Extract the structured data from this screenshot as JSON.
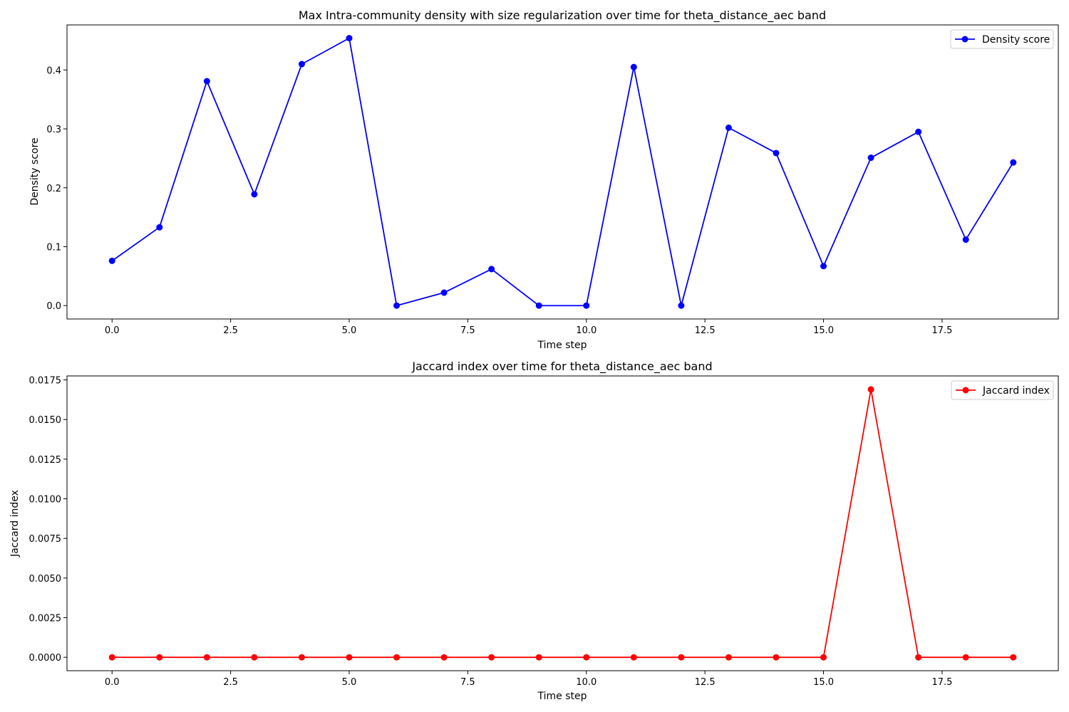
{
  "chart_data": [
    {
      "type": "line",
      "title": "Max Intra-community density with size regularization over time for theta_distance_aec band",
      "xlabel": "Time step",
      "ylabel": "Density score",
      "xlim": [
        -0.95,
        19.95
      ],
      "ylim": [
        -0.0227,
        0.4765
      ],
      "xticks": [
        0.0,
        2.5,
        5.0,
        7.5,
        10.0,
        12.5,
        15.0,
        17.5
      ],
      "xtick_labels": [
        "0.0",
        "2.5",
        "5.0",
        "7.5",
        "10.0",
        "12.5",
        "15.0",
        "17.5"
      ],
      "yticks": [
        0.0,
        0.1,
        0.2,
        0.3,
        0.4
      ],
      "ytick_labels": [
        "0.0",
        "0.1",
        "0.2",
        "0.3",
        "0.4"
      ],
      "grid": false,
      "legend_position": "top-right",
      "series": [
        {
          "name": "Density score",
          "color": "#0000ff",
          "marker": "circle",
          "x": [
            0,
            1,
            2,
            3,
            4,
            5,
            6,
            7,
            8,
            9,
            10,
            11,
            12,
            13,
            14,
            15,
            16,
            17,
            18,
            19
          ],
          "values": [
            0.076,
            0.133,
            0.381,
            0.189,
            0.41,
            0.454,
            0.0,
            0.022,
            0.062,
            0.0,
            0.0,
            0.405,
            0.0,
            0.302,
            0.259,
            0.067,
            0.251,
            0.295,
            0.112,
            0.243
          ]
        }
      ]
    },
    {
      "type": "line",
      "title": "Jaccard index over time for theta_distance_aec band",
      "xlabel": "Time step",
      "ylabel": "Jaccard index",
      "xlim": [
        -0.95,
        19.95
      ],
      "ylim": [
        -0.000845,
        0.01775
      ],
      "xticks": [
        0.0,
        2.5,
        5.0,
        7.5,
        10.0,
        12.5,
        15.0,
        17.5
      ],
      "xtick_labels": [
        "0.0",
        "2.5",
        "5.0",
        "7.5",
        "10.0",
        "12.5",
        "15.0",
        "17.5"
      ],
      "yticks": [
        0.0,
        0.0025,
        0.005,
        0.0075,
        0.01,
        0.0125,
        0.015,
        0.0175
      ],
      "ytick_labels": [
        "0.0000",
        "0.0025",
        "0.0050",
        "0.0075",
        "0.0100",
        "0.0125",
        "0.0150",
        "0.0175"
      ],
      "grid": false,
      "legend_position": "top-right",
      "series": [
        {
          "name": "Jaccard index",
          "color": "#ff0000",
          "marker": "circle",
          "x": [
            0,
            1,
            2,
            3,
            4,
            5,
            6,
            7,
            8,
            9,
            10,
            11,
            12,
            13,
            14,
            15,
            16,
            17,
            18,
            19
          ],
          "values": [
            0,
            0,
            0,
            0,
            0,
            0,
            0,
            0,
            0,
            0,
            0,
            0,
            0,
            0,
            0,
            0,
            0.0169,
            0,
            0,
            0
          ]
        }
      ]
    }
  ]
}
